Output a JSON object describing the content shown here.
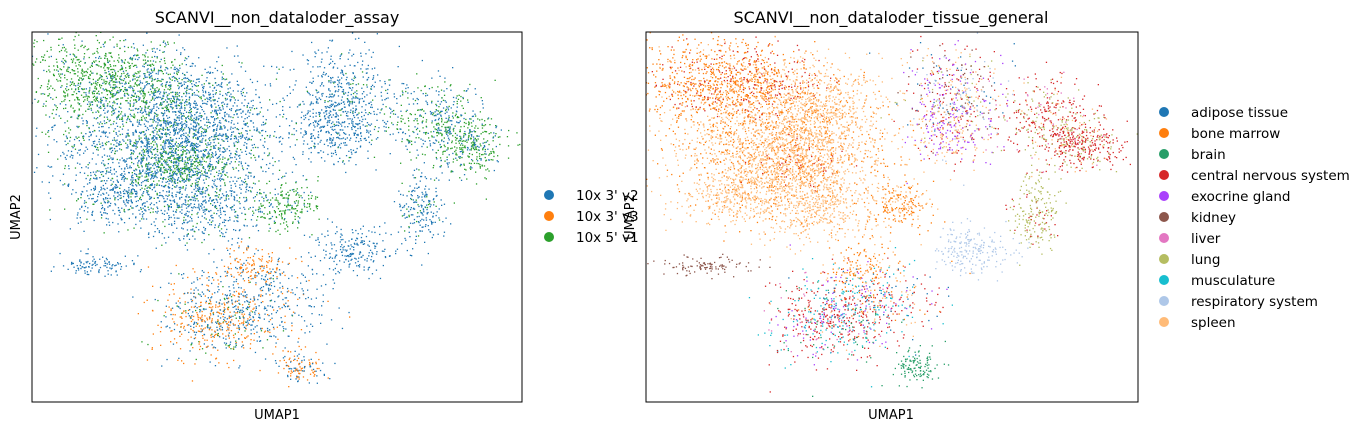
{
  "chart_data": [
    {
      "type": "scatter",
      "title": "SCANVI__non_dataloder_assay",
      "xlabel": "UMAP1",
      "ylabel": "UMAP2",
      "legend_position": "right",
      "grid": false,
      "series": [
        {
          "name": "10x 3' v2",
          "color": "#1f77b4"
        },
        {
          "name": "10x 3' v3",
          "color": "#ff7f0e"
        },
        {
          "name": "10x 5' v1",
          "color": "#2ca02c"
        }
      ]
    },
    {
      "type": "scatter",
      "title": "SCANVI__non_dataloder_tissue_general",
      "xlabel": "UMAP1",
      "ylabel": "UMAP2",
      "legend_position": "right",
      "grid": false,
      "series": [
        {
          "name": "adipose tissue",
          "color": "#1f77b4"
        },
        {
          "name": "bone marrow",
          "color": "#ff7f0e"
        },
        {
          "name": "brain",
          "color": "#279e68"
        },
        {
          "name": "central nervous system",
          "color": "#d62728"
        },
        {
          "name": "exocrine gland",
          "color": "#aa40fc"
        },
        {
          "name": "kidney",
          "color": "#8c564b"
        },
        {
          "name": "liver",
          "color": "#e377c2"
        },
        {
          "name": "lung",
          "color": "#b5bd61"
        },
        {
          "name": "musculature",
          "color": "#17becf"
        },
        {
          "name": "respiratory system",
          "color": "#aec7e8"
        },
        {
          "name": "spleen",
          "color": "#ffbb78"
        }
      ]
    }
  ]
}
